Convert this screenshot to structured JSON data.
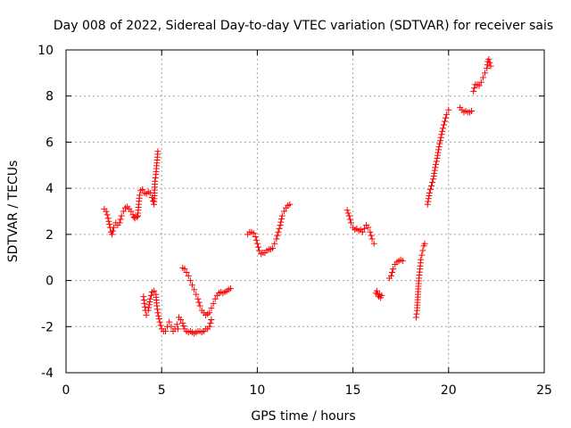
{
  "chart_data": {
    "type": "scatter",
    "title": "Day 008 of 2022, Sidereal Day-to-day VTEC variation (SDTVAR) for receiver sais",
    "xlabel": "GPS time / hours",
    "ylabel": "SDTVAR / TECUs",
    "xlim": [
      0,
      25
    ],
    "ylim": [
      -4,
      10
    ],
    "xticks": [
      0,
      5,
      10,
      15,
      20,
      25
    ],
    "yticks": [
      -4,
      -2,
      0,
      2,
      4,
      6,
      8,
      10
    ],
    "grid": true,
    "marker": "+",
    "color": "#ff0000",
    "segments": [
      {
        "x": [
          2.0,
          2.1,
          2.2,
          2.3,
          2.35,
          2.4,
          2.5,
          2.6,
          2.7,
          2.8,
          2.9,
          3.0,
          3.1,
          3.2,
          3.3,
          3.4,
          3.5,
          3.55,
          3.6,
          3.7,
          3.75
        ],
        "y": [
          3.1,
          3.0,
          2.7,
          2.3,
          2.1,
          2.0,
          2.3,
          2.5,
          2.4,
          2.5,
          2.8,
          3.0,
          3.15,
          3.2,
          3.1,
          3.0,
          2.85,
          2.75,
          2.7,
          2.75,
          2.8
        ]
      },
      {
        "x": [
          3.75,
          3.8,
          3.85,
          3.9,
          4.0,
          4.1,
          4.2,
          4.3,
          4.4,
          4.5,
          4.6,
          4.65,
          4.7,
          4.75,
          4.8
        ],
        "y": [
          2.8,
          3.3,
          3.7,
          3.9,
          3.95,
          3.8,
          3.75,
          3.85,
          3.8,
          3.6,
          3.3,
          4.3,
          4.6,
          5.1,
          5.6
        ]
      },
      {
        "x": [
          4.05,
          4.1,
          4.15,
          4.2,
          4.3,
          4.4,
          4.5,
          4.6,
          4.7,
          4.75,
          4.8,
          4.9,
          5.0,
          5.1,
          5.2,
          5.3,
          5.4,
          5.5,
          5.6,
          5.7,
          5.8,
          5.85
        ],
        "y": [
          -0.7,
          -1.0,
          -1.3,
          -1.5,
          -1.3,
          -0.8,
          -0.5,
          -0.45,
          -0.6,
          -1.1,
          -1.4,
          -1.8,
          -2.1,
          -2.2,
          -2.2,
          -2.0,
          -1.8,
          -2.0,
          -2.2,
          -2.1,
          -1.9,
          -2.1
        ]
      },
      {
        "x": [
          5.9,
          6.0,
          6.1,
          6.2,
          6.3,
          6.4,
          6.5,
          6.6,
          6.7,
          6.8,
          6.9,
          7.0,
          7.1,
          7.2,
          7.3,
          7.4,
          7.5,
          7.6
        ],
        "y": [
          -1.6,
          -1.7,
          -1.85,
          -2.1,
          -2.2,
          -2.25,
          -2.2,
          -2.25,
          -2.3,
          -2.25,
          -2.2,
          -2.2,
          -2.25,
          -2.2,
          -2.1,
          -2.1,
          -2.0,
          -1.7
        ]
      },
      {
        "x": [
          6.1,
          6.2,
          6.3,
          6.4,
          6.5,
          6.6,
          6.7,
          6.8,
          6.9,
          7.0,
          7.1,
          7.2,
          7.3,
          7.4,
          7.5,
          7.6,
          7.7,
          7.8,
          7.9,
          8.0,
          8.1,
          8.2,
          8.3,
          8.4,
          8.5,
          8.6
        ],
        "y": [
          0.55,
          0.5,
          0.35,
          0.2,
          0.0,
          -0.2,
          -0.4,
          -0.6,
          -0.8,
          -1.1,
          -1.3,
          -1.4,
          -1.5,
          -1.45,
          -1.4,
          -1.2,
          -1.0,
          -0.8,
          -0.65,
          -0.55,
          -0.5,
          -0.55,
          -0.5,
          -0.45,
          -0.4,
          -0.35
        ]
      },
      {
        "x": [
          9.5,
          9.6,
          9.7,
          9.8,
          9.9,
          10.0,
          10.1,
          10.2,
          10.3,
          10.4,
          10.5,
          10.6,
          10.7,
          10.8,
          10.9,
          11.0,
          11.1,
          11.2,
          11.3,
          11.4,
          11.5,
          11.6,
          11.7
        ],
        "y": [
          2.0,
          2.1,
          2.1,
          2.05,
          1.9,
          1.6,
          1.3,
          1.15,
          1.2,
          1.2,
          1.3,
          1.35,
          1.35,
          1.4,
          1.6,
          1.8,
          2.1,
          2.4,
          2.8,
          3.0,
          3.15,
          3.25,
          3.3
        ]
      },
      {
        "x": [
          14.7,
          14.8,
          14.9,
          15.0,
          15.1,
          15.2,
          15.3,
          15.4,
          15.5,
          15.6,
          15.7,
          15.8,
          15.9,
          16.0,
          16.1
        ],
        "y": [
          3.05,
          2.8,
          2.5,
          2.3,
          2.2,
          2.25,
          2.15,
          2.2,
          2.1,
          2.25,
          2.4,
          2.3,
          2.1,
          1.8,
          1.6
        ]
      },
      {
        "x": [
          16.2,
          16.25,
          16.3,
          16.35,
          16.4,
          16.45,
          16.5
        ],
        "y": [
          -0.55,
          -0.45,
          -0.6,
          -0.7,
          -0.6,
          -0.75,
          -0.65
        ]
      },
      {
        "x": [
          16.9,
          17.0,
          17.05,
          17.1,
          17.2,
          17.3,
          17.4,
          17.5,
          17.6
        ],
        "y": [
          0.1,
          0.2,
          0.35,
          0.5,
          0.7,
          0.8,
          0.85,
          0.9,
          0.85
        ]
      },
      {
        "x": [
          18.3,
          18.35,
          18.4,
          18.45,
          18.5,
          18.55,
          18.6,
          18.65,
          18.7,
          18.75
        ],
        "y": [
          -1.6,
          -1.3,
          -0.6,
          0.1,
          0.5,
          0.9,
          1.1,
          1.3,
          1.5,
          1.6
        ]
      },
      {
        "x": [
          18.9,
          19.0,
          19.1,
          19.2,
          19.3,
          19.4,
          19.5,
          19.6,
          19.7,
          19.8,
          19.9,
          20.0
        ],
        "y": [
          3.3,
          3.8,
          4.1,
          4.4,
          4.9,
          5.3,
          5.8,
          6.2,
          6.6,
          6.9,
          7.2,
          7.4
        ]
      },
      {
        "x": [
          20.6,
          20.7,
          20.8,
          20.9,
          21.0,
          21.1,
          21.2
        ],
        "y": [
          7.5,
          7.4,
          7.3,
          7.35,
          7.3,
          7.3,
          7.35
        ]
      },
      {
        "x": [
          21.3,
          21.4,
          21.5,
          21.6,
          21.7,
          21.8,
          21.9,
          22.0,
          22.05,
          22.1,
          22.15,
          22.2
        ],
        "y": [
          8.2,
          8.5,
          8.5,
          8.45,
          8.6,
          8.8,
          9.0,
          9.2,
          9.5,
          9.6,
          9.45,
          9.3
        ]
      }
    ]
  }
}
